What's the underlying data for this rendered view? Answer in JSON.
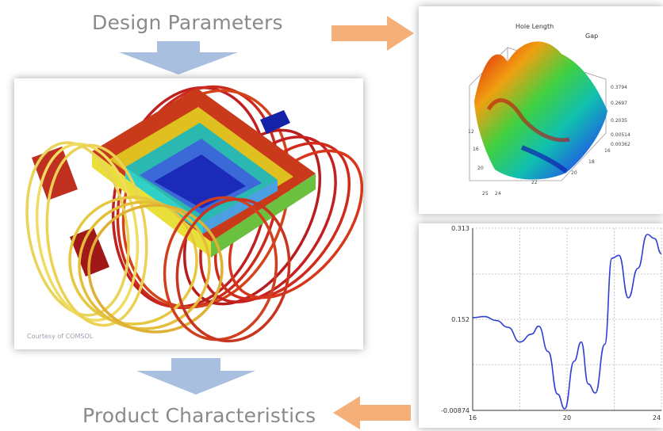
{
  "flow": {
    "top_label": "Design Parameters",
    "bottom_label": "Product Characteristics"
  },
  "simulation_image": {
    "credit": "Courtesy of COMSOL"
  },
  "surface_plot": {
    "axis_labels": [
      "Hole Length",
      "Gap"
    ],
    "z_ticks": [
      "0.3794",
      "0.2697",
      "0.2035",
      "0.00514",
      "0.00362"
    ],
    "left_ticks": [
      "12",
      "16",
      "20",
      "25"
    ],
    "bottom_ticks": [
      "24",
      "22",
      "20",
      "18",
      "16"
    ]
  },
  "colors": {
    "arrow_down": "#a9bfe0",
    "arrow_right": "#f5b07a",
    "line_series": "#2f3fd6"
  },
  "chart_data": {
    "type": "line",
    "title": "",
    "xlabel": "",
    "ylabel": "",
    "x_tick_labels": [
      "16",
      "20",
      "24"
    ],
    "y_tick_labels": [
      "0.313",
      "0.152",
      "-0.00874"
    ],
    "xlim": [
      16,
      24
    ],
    "ylim": [
      -0.00874,
      0.313
    ],
    "grid": true,
    "series": [
      {
        "x": [
          16,
          16.5,
          17,
          17.5,
          18,
          18.5,
          18.8,
          19.2,
          19.6,
          19.9,
          20.3,
          20.6,
          20.9,
          21.2,
          21.6,
          21.9,
          22.2,
          22.6,
          23.0,
          23.4,
          23.7,
          24
        ],
        "y": [
          0.155,
          0.157,
          0.15,
          0.138,
          0.112,
          0.126,
          0.14,
          0.095,
          0.02,
          -0.006,
          0.078,
          0.112,
          0.038,
          0.022,
          0.108,
          0.26,
          0.265,
          0.19,
          0.242,
          0.302,
          0.295,
          0.268
        ]
      }
    ]
  }
}
